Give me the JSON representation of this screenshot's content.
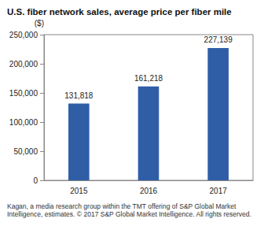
{
  "chart_data": {
    "type": "bar",
    "title": "U.S. fiber network sales, average price per fiber mile",
    "ylabel": "($)",
    "categories": [
      "2015",
      "2016",
      "2017"
    ],
    "values": [
      131818,
      161218,
      227139
    ],
    "value_labels": [
      "131,818",
      "161,218",
      "227,139"
    ],
    "color": "#2f5ea6",
    "ylim": [
      0,
      250000
    ],
    "yticks": [
      0,
      {
        "value": 50000,
        "label": "50,000"
      },
      {
        "value": 100000,
        "label": "100,000"
      },
      {
        "value": 150000,
        "label": "150,000"
      },
      {
        "value": 200000,
        "label": "200,000"
      },
      {
        "value": 250000,
        "label": "250,000"
      }
    ],
    "grid": false,
    "data_labels": true,
    "annotations": [
      "Kagan, a media research group within the TMT offering of S&P Global Market Intelligence, estimates. © 2017 S&P Global Market Intelligence. All rights reserved."
    ]
  }
}
